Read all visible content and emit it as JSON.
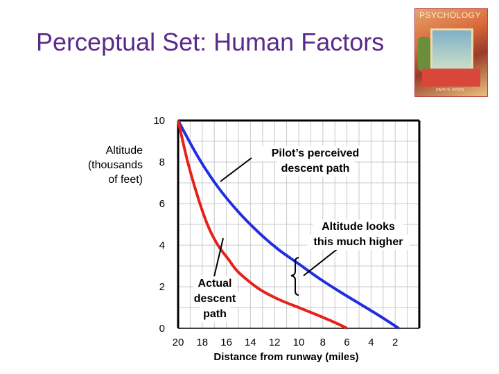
{
  "slide": {
    "title": "Perceptual Set:  Human Factors",
    "book_cover": {
      "title": "PSYCHOLOGY",
      "author": "DAVID G. MYERS"
    }
  },
  "chart_data": {
    "type": "line",
    "ylabel": [
      "Altitude",
      "(thousands",
      "of feet)"
    ],
    "xlabel": "Distance from runway (miles)",
    "y_ticks": [
      10,
      8,
      6,
      4,
      2,
      0
    ],
    "x_ticks": [
      20,
      18,
      16,
      14,
      12,
      10,
      8,
      6,
      4,
      2
    ],
    "xlim": [
      20,
      0
    ],
    "ylim": [
      0,
      10
    ],
    "grid": true,
    "series": [
      {
        "role": "perceived",
        "color": "#1f2fe0",
        "points": [
          [
            20,
            10
          ],
          [
            18.3,
            8.2
          ],
          [
            16.7,
            6.8
          ],
          [
            15,
            5.6
          ],
          [
            13.3,
            4.6
          ],
          [
            11.7,
            3.8
          ],
          [
            10,
            3.1
          ],
          [
            8.3,
            2.4
          ],
          [
            6.7,
            1.8
          ],
          [
            5,
            1.2
          ],
          [
            3.3,
            0.6
          ],
          [
            1.7,
            0
          ]
        ]
      },
      {
        "role": "actual",
        "color": "#e8201a",
        "points": [
          [
            20,
            10
          ],
          [
            19.2,
            8
          ],
          [
            18.3,
            6.2
          ],
          [
            17.5,
            4.9
          ],
          [
            16.7,
            4
          ],
          [
            15.8,
            3.3
          ],
          [
            15,
            2.7
          ],
          [
            13.3,
            1.9
          ],
          [
            11.7,
            1.4
          ],
          [
            10,
            1
          ],
          [
            8.3,
            0.6
          ],
          [
            6.7,
            0.2
          ],
          [
            6,
            0
          ]
        ]
      }
    ],
    "annotations": [
      {
        "id": "perceived",
        "lines": [
          "Pilot’s perceived",
          "descent path"
        ]
      },
      {
        "id": "higher",
        "lines": [
          "Altitude looks",
          "this much higher"
        ]
      },
      {
        "id": "actual",
        "lines": [
          "Actual",
          "descent",
          "path"
        ]
      }
    ]
  }
}
